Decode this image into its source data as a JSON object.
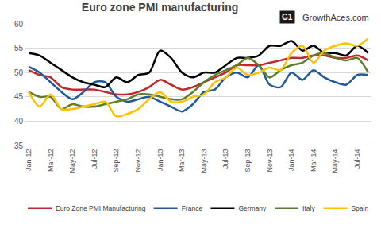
{
  "chart_data": {
    "type": "line",
    "title": "Euro zone PMI manufacturing",
    "annotations": [
      "G1",
      "GrowthAces.com"
    ],
    "categories": [
      "Jan-12",
      null,
      "Mar-12",
      null,
      "May-12",
      null,
      "Jul-12",
      null,
      "Sep-12",
      null,
      "Nov-12",
      null,
      "Jan-13",
      null,
      "Mar-13",
      null,
      "May-13",
      null,
      "Jul-13",
      null,
      "Sep-13",
      null,
      "Nov-13",
      null,
      "Jan-14",
      null,
      "Mar-14",
      null,
      "May-14",
      null,
      "Jul-14",
      null
    ],
    "series": [
      {
        "name": "Euro Zone PMI Manufacturing",
        "color": "#c0282d",
        "values": [
          50.5,
          49.5,
          49.0,
          47.0,
          46.5,
          46.5,
          46.5,
          46.0,
          45.5,
          45.5,
          46.0,
          47.0,
          48.5,
          47.5,
          46.5,
          47.0,
          48.0,
          49.0,
          50.0,
          51.5,
          51.5,
          51.5,
          52.0,
          52.5,
          53.0,
          53.0,
          53.5,
          53.5,
          53.0,
          53.0,
          53.5,
          52.5
        ]
      },
      {
        "name": "France",
        "color": "#1f5a96",
        "values": [
          51.2,
          50.0,
          48.0,
          46.0,
          44.5,
          46.0,
          48.0,
          48.0,
          45.0,
          44.0,
          44.5,
          45.0,
          44.0,
          43.0,
          42.0,
          43.5,
          46.0,
          46.5,
          49.0,
          50.0,
          49.0,
          51.5,
          47.5,
          47.0,
          50.0,
          48.5,
          50.5,
          49.0,
          48.0,
          47.5,
          49.5,
          49.5
        ]
      },
      {
        "name": "Germany",
        "color": "#000000",
        "values": [
          54.0,
          53.5,
          52.0,
          50.5,
          49.0,
          48.0,
          47.5,
          47.0,
          49.0,
          48.0,
          49.5,
          50.0,
          54.5,
          53.0,
          50.0,
          49.0,
          50.0,
          50.0,
          51.5,
          53.0,
          53.0,
          53.5,
          55.5,
          55.5,
          56.5,
          54.5,
          55.5,
          54.0,
          54.0,
          53.5,
          55.5,
          54.0
        ]
      },
      {
        "name": "Italy",
        "color": "#5e7d2b",
        "values": [
          46.0,
          45.0,
          45.0,
          42.5,
          43.5,
          43.0,
          43.0,
          43.5,
          44.0,
          44.5,
          45.5,
          45.5,
          45.0,
          44.5,
          44.5,
          46.0,
          48.0,
          49.5,
          50.5,
          51.5,
          53.0,
          51.5,
          49.0,
          50.5,
          51.5,
          52.0,
          53.5,
          54.0,
          53.0,
          52.5,
          53.0,
          50.0
        ]
      },
      {
        "name": "Spain",
        "color": "#ffc000",
        "values": [
          46.0,
          43.0,
          45.5,
          42.5,
          42.5,
          43.0,
          43.5,
          44.0,
          41.0,
          41.5,
          42.5,
          44.5,
          46.0,
          44.0,
          44.0,
          45.0,
          45.5,
          48.0,
          49.0,
          51.0,
          49.5,
          50.0,
          51.0,
          50.5,
          54.0,
          55.5,
          52.0,
          54.5,
          55.5,
          56.0,
          55.5,
          57.0
        ]
      }
    ],
    "ylim": [
      35,
      60
    ],
    "yticks": [
      35,
      40,
      45,
      50,
      55,
      60
    ],
    "grid": true,
    "legend": "bottom",
    "line_style": "smooth"
  }
}
